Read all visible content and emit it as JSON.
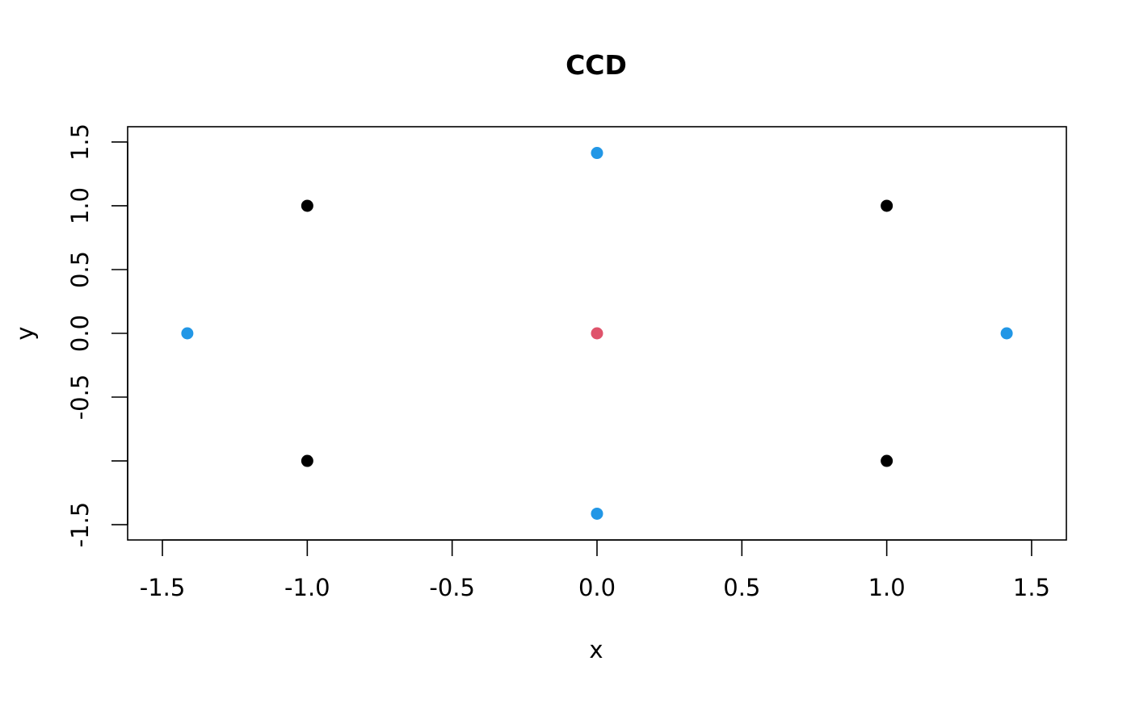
{
  "chart_data": {
    "type": "scatter",
    "title": "CCD",
    "xlabel": "x",
    "ylabel": "y",
    "xlim": [
      -1.5,
      1.5
    ],
    "ylim": [
      -1.5,
      1.5
    ],
    "x_ticks": [
      -1.5,
      -1.0,
      -0.5,
      0.0,
      0.5,
      1.0,
      1.5
    ],
    "x_tick_labels": [
      "-1.5",
      "-1.0",
      "-0.5",
      "0.0",
      "0.5",
      "1.0",
      "1.5"
    ],
    "y_ticks": [
      -1.5,
      -1.0,
      -0.5,
      0.0,
      0.5,
      1.0,
      1.5
    ],
    "y_tick_labels": [
      "-1.5",
      "",
      "-0.5",
      "0.0",
      "0.5",
      "1.0",
      "1.5"
    ],
    "grid": false,
    "legend": "none",
    "series": [
      {
        "color": "#000000",
        "points": [
          {
            "x": -1.0,
            "y": -1.0
          },
          {
            "x": 1.0,
            "y": -1.0
          },
          {
            "x": -1.0,
            "y": 1.0
          },
          {
            "x": 1.0,
            "y": 1.0
          }
        ]
      },
      {
        "color": "#DF536B",
        "points": [
          {
            "x": 0.0,
            "y": 0.0
          }
        ]
      },
      {
        "color": "#2297E6",
        "points": [
          {
            "x": -1.414,
            "y": 0.0
          },
          {
            "x": 1.414,
            "y": 0.0
          },
          {
            "x": 0.0,
            "y": -1.414
          },
          {
            "x": 0.0,
            "y": 1.414
          }
        ]
      }
    ]
  }
}
